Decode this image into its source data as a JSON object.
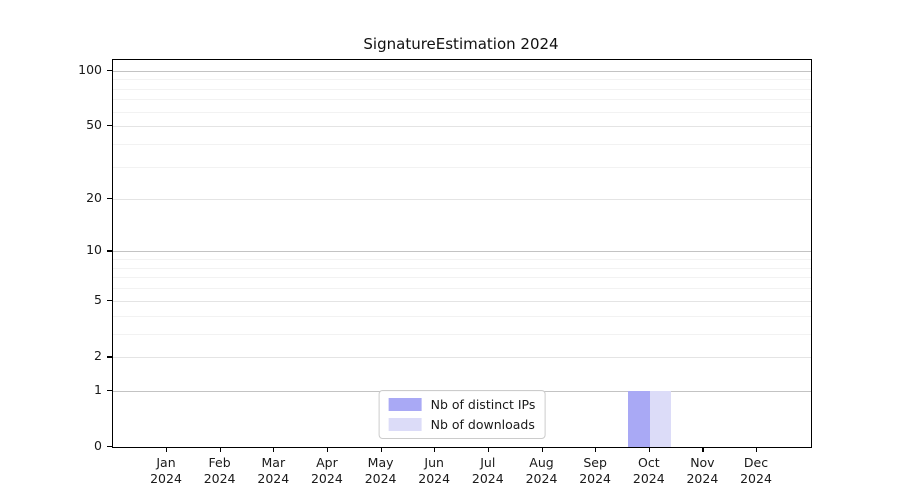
{
  "title": "SignatureEstimation 2024",
  "colors": {
    "distinct_ips": "#a9a9f5",
    "downloads": "#dcdcf8",
    "grid_major": "#c3c3c3",
    "grid_mid": "#e4e4e4",
    "grid_minor": "#f2f2f2",
    "axis": "#000000",
    "background": "#ffffff"
  },
  "legend": {
    "position": "lower center",
    "items": [
      {
        "label": "Nb of distinct IPs",
        "color": "#a9a9f5"
      },
      {
        "label": "Nb of downloads",
        "color": "#dcdcf8"
      }
    ]
  },
  "chart_data": {
    "type": "bar",
    "title": "SignatureEstimation 2024",
    "categories": [
      "Jan",
      "Feb",
      "Mar",
      "Apr",
      "May",
      "Jun",
      "Jul",
      "Aug",
      "Sep",
      "Oct",
      "Nov",
      "Dec"
    ],
    "category_year": "2024",
    "series": [
      {
        "name": "Nb of distinct IPs",
        "color": "#a9a9f5",
        "values": [
          0,
          0,
          0,
          0,
          0,
          0,
          0,
          0,
          0,
          1,
          0,
          0
        ]
      },
      {
        "name": "Nb of downloads",
        "color": "#dcdcf8",
        "values": [
          0,
          0,
          0,
          0,
          0,
          0,
          0,
          0,
          0,
          1,
          0,
          0
        ]
      }
    ],
    "xlabel": "",
    "ylabel": "",
    "yscale": "log1p",
    "ylim": [
      0,
      114
    ],
    "y_ticks": [
      0,
      1,
      2,
      5,
      10,
      20,
      50,
      100
    ],
    "y_major_grid": [
      1,
      10,
      100
    ],
    "y_mid_grid": [
      2,
      5,
      20,
      50
    ],
    "y_minor_grid": [
      3,
      4,
      6,
      7,
      8,
      9,
      30,
      40,
      60,
      70,
      80,
      90
    ],
    "grid": true,
    "legend_position": "lower center"
  }
}
